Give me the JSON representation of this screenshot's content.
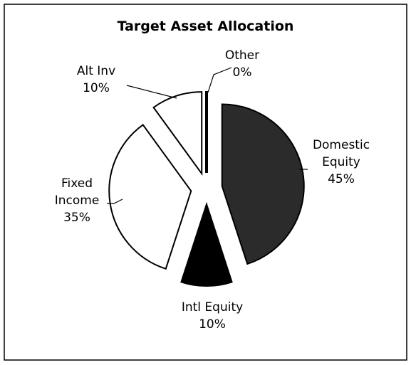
{
  "chart_data": {
    "type": "pie",
    "title": "Target Asset Allocation",
    "categories": [
      "Domestic Equity",
      "Intl Equity",
      "Fixed Income",
      "Alt Inv",
      "Other"
    ],
    "values": [
      45,
      10,
      35,
      10,
      0
    ],
    "value_labels": [
      "45%",
      "10%",
      "35%",
      "10%",
      "0%"
    ],
    "colors": [
      "#2b2b2b",
      "#000000",
      "#ffffff",
      "#ffffff",
      "#ffffff"
    ]
  }
}
